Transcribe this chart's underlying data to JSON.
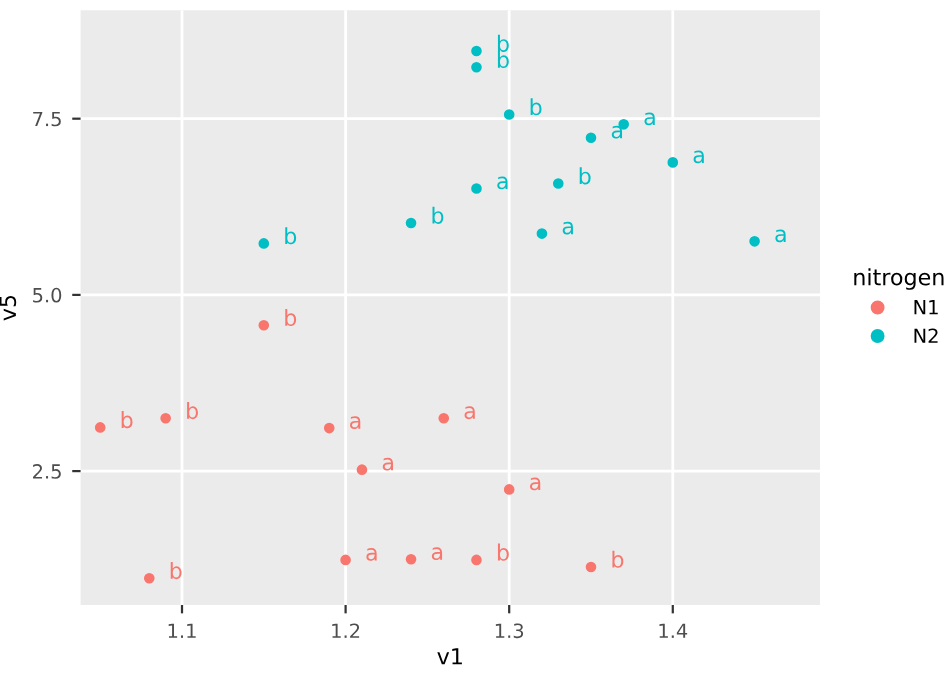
{
  "chart_data": {
    "type": "scatter",
    "xlabel": "v1",
    "ylabel": "v5",
    "legend_title": "nitrogen",
    "legend": "right",
    "grid": true,
    "marker": "circle",
    "xlim": [
      1.038,
      1.49
    ],
    "ylim": [
      0.6,
      9.04
    ],
    "xticks": [
      1.1,
      1.2,
      1.3,
      1.4
    ],
    "yticks": [
      2.5,
      {
        "value": 5,
        "label": "5.0"
      },
      7.5
    ],
    "series": [
      {
        "name": "N1",
        "color": "#f8766d",
        "x": [
          1.05,
          1.09,
          1.15,
          1.08,
          1.19,
          1.21,
          1.26,
          1.2,
          1.24,
          1.28,
          1.3,
          1.35
        ],
        "values": [
          3.12,
          3.25,
          4.57,
          0.98,
          3.11,
          2.52,
          3.25,
          1.24,
          1.25,
          1.24,
          2.24,
          1.14
        ],
        "value_labels": [
          "b",
          "b",
          "b",
          "b",
          "a",
          "a",
          "a",
          "a",
          "a",
          "b",
          "a",
          "b"
        ]
      },
      {
        "name": "N2",
        "color": "#00bfc4",
        "x": [
          1.15,
          1.24,
          1.28,
          1.28,
          1.28,
          1.3,
          1.33,
          1.32,
          1.35,
          1.37,
          1.4,
          1.45
        ],
        "values": [
          5.73,
          6.02,
          6.51,
          8.46,
          8.23,
          7.56,
          6.58,
          5.87,
          7.23,
          7.42,
          6.88,
          5.76
        ],
        "value_labels": [
          "b",
          "b",
          "a",
          "b",
          "b",
          "b",
          "b",
          "a",
          "a",
          "a",
          "a",
          "a"
        ]
      }
    ]
  }
}
